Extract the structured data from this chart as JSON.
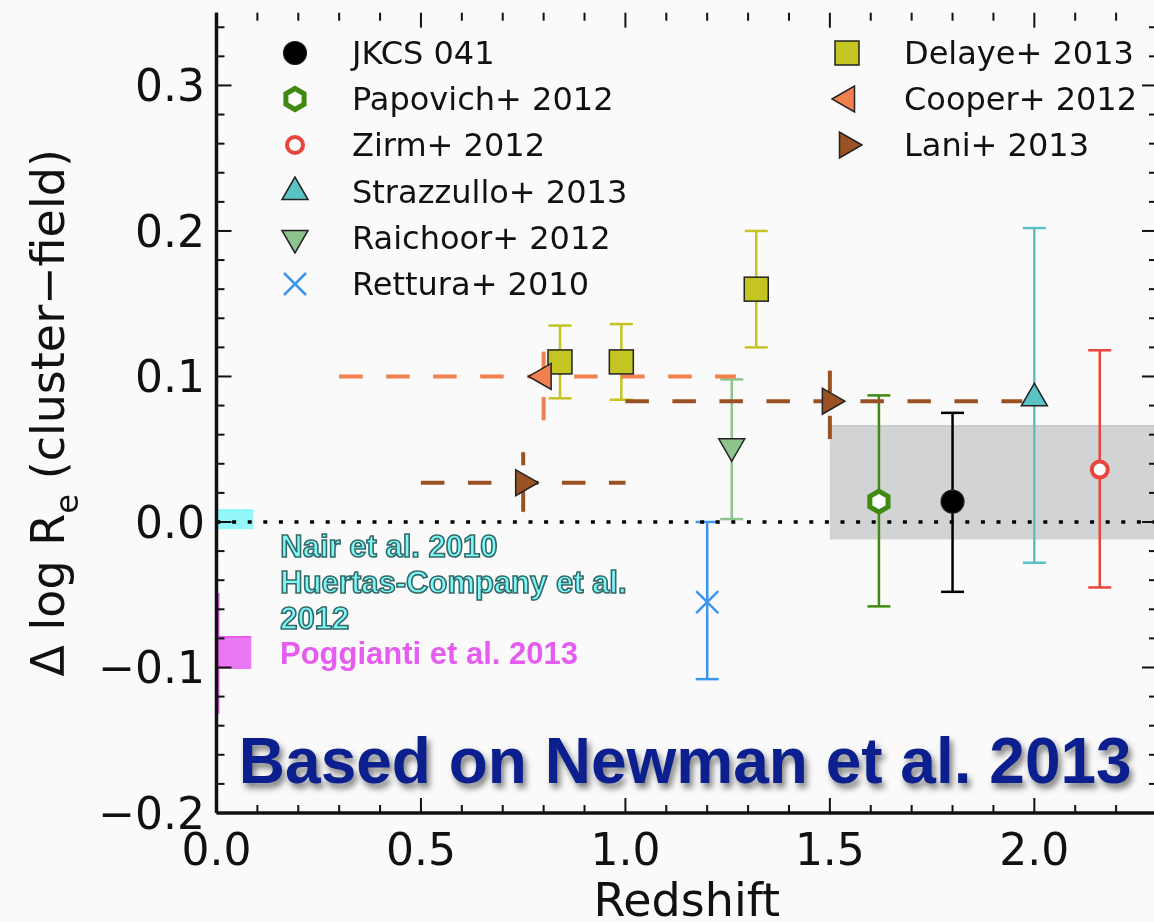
{
  "chart_data": {
    "type": "scatter",
    "xlabel": "Redshift",
    "ylabel": "Δ log R$_{e}$ (cluster−field)",
    "xlim": [
      0,
      2.3
    ],
    "ylim": [
      -0.2,
      0.35
    ],
    "xticks": [
      {
        "value": 0,
        "label": "0.0"
      },
      {
        "value": 0.1,
        "label": null
      },
      {
        "value": 0.2,
        "label": null
      },
      {
        "value": 0.3,
        "label": null
      },
      {
        "value": 0.4,
        "label": null
      },
      0.5,
      {
        "value": 0.6,
        "label": null
      },
      {
        "value": 0.7,
        "label": null
      },
      {
        "value": 0.8,
        "label": null
      },
      {
        "value": 0.9,
        "label": null
      },
      {
        "value": 1,
        "label": "1.0"
      },
      {
        "value": 1.1,
        "label": null
      },
      {
        "value": 1.2,
        "label": null
      },
      {
        "value": 1.3,
        "label": null
      },
      {
        "value": 1.4,
        "label": null
      },
      1.5,
      {
        "value": 1.6,
        "label": null
      },
      {
        "value": 1.7,
        "label": null
      },
      {
        "value": 1.8,
        "label": null
      },
      {
        "value": 1.9,
        "label": null
      },
      {
        "value": 2,
        "label": "2.0"
      },
      {
        "value": 2.1,
        "label": null
      },
      {
        "value": 2.2,
        "label": null
      }
    ],
    "yticks": [
      {
        "value": -0.2,
        "label": "−0.2"
      },
      {
        "value": -0.18,
        "label": null
      },
      {
        "value": -0.16,
        "label": null
      },
      {
        "value": -0.14,
        "label": null
      },
      {
        "value": -0.12,
        "label": null
      },
      {
        "value": -0.1,
        "label": "−0.1"
      },
      {
        "value": -0.08,
        "label": null
      },
      {
        "value": -0.06,
        "label": null
      },
      {
        "value": -0.04,
        "label": null
      },
      {
        "value": -0.02,
        "label": null
      },
      {
        "value": 0,
        "label": "0.0"
      },
      {
        "value": 0.02,
        "label": null
      },
      {
        "value": 0.04,
        "label": null
      },
      {
        "value": 0.06,
        "label": null
      },
      {
        "value": 0.08,
        "label": null
      },
      0.1,
      {
        "value": 0.12,
        "label": null
      },
      {
        "value": 0.14,
        "label": null
      },
      {
        "value": 0.16,
        "label": null
      },
      {
        "value": 0.18,
        "label": null
      },
      0.2,
      {
        "value": 0.22,
        "label": null
      },
      {
        "value": 0.24,
        "label": null
      },
      {
        "value": 0.26,
        "label": null
      },
      {
        "value": 0.28,
        "label": null
      },
      0.3,
      {
        "value": 0.32,
        "label": null
      },
      {
        "value": 0.34,
        "label": null
      }
    ],
    "legend": "top",
    "ref_lines": [
      {
        "axis": "y",
        "value": 0,
        "color": "#000000",
        "line_style": "dotted"
      }
    ],
    "annotations": [
      "Based on Newman et al. 2013"
    ],
    "series": [
      {
        "type": "line",
        "color": "#c9cbcc",
        "x": [
          1.5,
          2.3
        ],
        "values": [
          0.066,
          0.066
        ],
        "lower": [
          -0.012,
          -0.012
        ],
        "upper": [
          0.066,
          0.066
        ]
      },
      {
        "name": "JKCS 041",
        "color": "#000000",
        "marker": "circle",
        "x": [
          1.8
        ],
        "values": [
          0.014
        ],
        "errors": [
          [
            -0.048,
            0.075
          ]
        ]
      },
      {
        "name": "Papovich+ 2012",
        "color": "#3f8a10",
        "x": [
          1.62
        ],
        "values": [
          0.014
        ],
        "errors": [
          [
            -0.058,
            0.087
          ]
        ]
      },
      {
        "name": "Zirm+ 2012",
        "color": "#e8453c",
        "marker": "circle-open",
        "x": [
          2.16
        ],
        "values": [
          0.036
        ],
        "errors": [
          [
            -0.045,
            0.118
          ]
        ]
      },
      {
        "name": "Strazzullo+ 2013",
        "color": "#5bc2c4",
        "marker": "triangle",
        "x": [
          2.0
        ],
        "values": [
          0.085
        ],
        "errors": [
          [
            -0.028,
            0.202
          ]
        ]
      },
      {
        "name": "Raichoor+ 2012",
        "color": "#8cc48c",
        "marker": "triangle-down",
        "x": [
          1.26
        ],
        "values": [
          0.052
        ],
        "errors": [
          [
            0.002,
            0.098
          ]
        ]
      },
      {
        "name": "Rettura+ 2010",
        "color": "#3c96f0",
        "marker": "cross",
        "x": [
          1.2
        ],
        "values": [
          -0.055
        ],
        "errors": [
          [
            -0.108,
            0.0
          ]
        ]
      },
      {
        "name": "Delaye+ 2013",
        "color": "#c4c422",
        "marker": "square",
        "x": [
          0.84,
          0.99,
          1.32
        ],
        "values": [
          0.11,
          0.11,
          0.16
        ],
        "errors": [
          [
            0.085,
            0.135
          ],
          [
            0.084,
            0.136
          ],
          [
            0.12,
            0.2
          ]
        ]
      },
      {
        "name": "Cooper+ 2012",
        "color": "#f2804e",
        "marker": "triangle-left",
        "line_style": "dashed",
        "x": [
          0.8
        ],
        "values": [
          0.1
        ],
        "errors": [
          [
            0.07,
            0.117
          ]
        ],
        "xerrors": [
          [
            0.3,
            1.27
          ]
        ]
      },
      {
        "name": "Lani+ 2013",
        "color": "#9a5222",
        "marker": "triangle-right",
        "line_style": "dashed",
        "x": [
          0.75,
          1.5
        ],
        "values": [
          0.027,
          0.083
        ],
        "errors": [
          [
            0.007,
            0.048
          ],
          [
            0.057,
            0.104
          ]
        ],
        "xerrors": [
          [
            0.5,
            1.0
          ],
          [
            1.0,
            1.97
          ]
        ]
      },
      {
        "type": "line",
        "name": "Nair et al. 2010\nHuertas-Company et al.\n2012",
        "color": "#7ff8f8",
        "x": [
          0,
          0.09
        ],
        "values": [
          0.008,
          0.008
        ],
        "lower": [
          -0.005,
          -0.005
        ],
        "upper": [
          0.008,
          0.008
        ]
      },
      {
        "type": "line",
        "color": "#e65cf0",
        "x": [
          0,
          0.085
        ],
        "values": [
          -0.079,
          -0.079
        ],
        "lower": [
          -0.101,
          -0.101
        ],
        "upper": [
          -0.079,
          -0.079
        ]
      },
      {
        "type": "line",
        "name": "Poggianti et al. 2013",
        "color": "#e65cf0",
        "x": [
          0,
          0
        ],
        "values": [
          -0.049,
          -0.132
        ]
      }
    ]
  }
}
